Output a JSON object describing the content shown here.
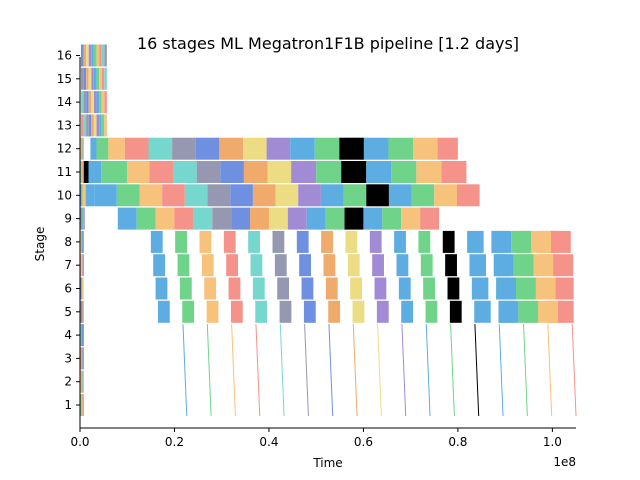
{
  "chart_data": {
    "type": "timeline",
    "title": "16 stages ML Megatron1F1B pipeline [1.2 days]",
    "xlabel": "Time",
    "ylabel": "Stage",
    "x_offset_label": "1e8",
    "x_scale": 100000000,
    "xlim": [
      0,
      1.05
    ],
    "xticks": [
      0.0,
      0.2,
      0.4,
      0.6,
      0.8,
      1.0
    ],
    "xtick_labels": [
      "0.0",
      "0.2",
      "0.4",
      "0.6",
      "0.8",
      "1.0"
    ],
    "stages": [
      1,
      2,
      3,
      4,
      5,
      6,
      7,
      8,
      9,
      10,
      11,
      12,
      13,
      14,
      15,
      16
    ],
    "grid": false,
    "colors": {
      "blue": "#5dade2",
      "green": "#6fd38a",
      "orange": "#f7c27c",
      "red": "#f5938a",
      "teal": "#76d7cf",
      "slate": "#9598b0",
      "royal": "#6f8fe0",
      "amber": "#efaa6c",
      "yellow": "#ecdc84",
      "purple": "#a18bd5",
      "black": "#000000"
    },
    "series": [
      {
        "stage": 12,
        "segments": [
          [
            0.022,
            0.035,
            "blue"
          ],
          [
            0.035,
            0.06,
            "green"
          ],
          [
            0.06,
            0.095,
            "orange"
          ],
          [
            0.095,
            0.145,
            "red"
          ],
          [
            0.145,
            0.195,
            "teal"
          ],
          [
            0.195,
            0.245,
            "slate"
          ],
          [
            0.245,
            0.295,
            "royal"
          ],
          [
            0.295,
            0.345,
            "amber"
          ],
          [
            0.345,
            0.395,
            "yellow"
          ],
          [
            0.395,
            0.445,
            "purple"
          ],
          [
            0.445,
            0.497,
            "blue"
          ],
          [
            0.497,
            0.549,
            "green"
          ],
          [
            0.549,
            0.601,
            "black"
          ],
          [
            0.601,
            0.653,
            "blue"
          ],
          [
            0.653,
            0.705,
            "green"
          ],
          [
            0.705,
            0.757,
            "orange"
          ],
          [
            0.757,
            0.8,
            "red"
          ]
        ]
      },
      {
        "stage": 11,
        "segments": [
          [
            0.006,
            0.018,
            "black"
          ],
          [
            0.018,
            0.045,
            "blue"
          ],
          [
            0.045,
            0.1,
            "green"
          ],
          [
            0.1,
            0.147,
            "orange"
          ],
          [
            0.147,
            0.197,
            "red"
          ],
          [
            0.197,
            0.247,
            "teal"
          ],
          [
            0.247,
            0.297,
            "slate"
          ],
          [
            0.297,
            0.347,
            "royal"
          ],
          [
            0.347,
            0.397,
            "amber"
          ],
          [
            0.397,
            0.447,
            "yellow"
          ],
          [
            0.447,
            0.5,
            "purple"
          ],
          [
            0.5,
            0.553,
            "green"
          ],
          [
            0.553,
            0.606,
            "black"
          ],
          [
            0.606,
            0.659,
            "blue"
          ],
          [
            0.659,
            0.712,
            "green"
          ],
          [
            0.712,
            0.765,
            "orange"
          ],
          [
            0.765,
            0.818,
            "red"
          ]
        ]
      },
      {
        "stage": 10,
        "segments": [
          [
            0.004,
            0.012,
            "orange"
          ],
          [
            0.012,
            0.03,
            "blue"
          ],
          [
            0.03,
            0.078,
            "blue"
          ],
          [
            0.078,
            0.126,
            "green"
          ],
          [
            0.126,
            0.174,
            "orange"
          ],
          [
            0.174,
            0.222,
            "red"
          ],
          [
            0.222,
            0.27,
            "teal"
          ],
          [
            0.27,
            0.318,
            "slate"
          ],
          [
            0.318,
            0.366,
            "royal"
          ],
          [
            0.366,
            0.414,
            "amber"
          ],
          [
            0.414,
            0.462,
            "yellow"
          ],
          [
            0.462,
            0.51,
            "purple"
          ],
          [
            0.51,
            0.558,
            "blue"
          ],
          [
            0.558,
            0.606,
            "green"
          ],
          [
            0.606,
            0.654,
            "black"
          ],
          [
            0.654,
            0.702,
            "blue"
          ],
          [
            0.702,
            0.75,
            "green"
          ],
          [
            0.75,
            0.798,
            "orange"
          ],
          [
            0.798,
            0.846,
            "red"
          ]
        ]
      },
      {
        "stage": 9,
        "segments": [
          [
            0.004,
            0.01,
            "purple"
          ],
          [
            0.08,
            0.12,
            "blue"
          ],
          [
            0.12,
            0.16,
            "green"
          ],
          [
            0.16,
            0.2,
            "orange"
          ],
          [
            0.2,
            0.24,
            "red"
          ],
          [
            0.24,
            0.28,
            "teal"
          ],
          [
            0.28,
            0.32,
            "slate"
          ],
          [
            0.32,
            0.36,
            "royal"
          ],
          [
            0.36,
            0.4,
            "amber"
          ],
          [
            0.4,
            0.44,
            "yellow"
          ],
          [
            0.44,
            0.48,
            "purple"
          ],
          [
            0.48,
            0.52,
            "blue"
          ],
          [
            0.52,
            0.56,
            "green"
          ],
          [
            0.56,
            0.6,
            "black"
          ],
          [
            0.6,
            0.64,
            "blue"
          ],
          [
            0.64,
            0.68,
            "green"
          ],
          [
            0.68,
            0.72,
            "orange"
          ],
          [
            0.72,
            0.76,
            "red"
          ]
        ]
      }
    ]
  }
}
